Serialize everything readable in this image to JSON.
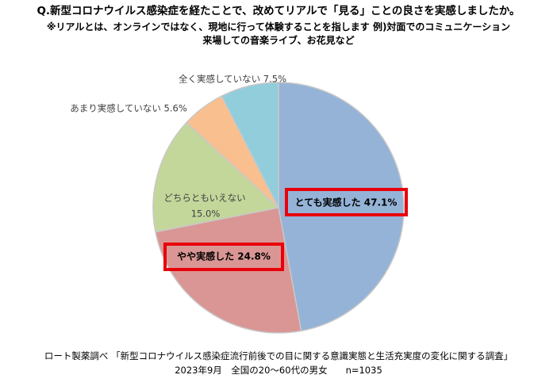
{
  "header": {
    "title": "Q.新型コロナウイルス感染症を経たことで、改めてリアルで「見る」ことの良さを実感しましたか。",
    "note_line1": "※リアルとは、オンラインではなく、現地に行って体験することを指します 例)対面でのコミュニケーション",
    "note_line2": "来場しての音楽ライブ、お花見など"
  },
  "chart_data": {
    "type": "pie",
    "categories": [
      "とても実感した",
      "やや実感した",
      "どちらともいえない",
      "あまり実感していない",
      "全く実感していない"
    ],
    "values": [
      47.1,
      24.8,
      15.0,
      5.6,
      7.5
    ],
    "unit": "%",
    "colors": [
      "#95b3d7",
      "#da9694",
      "#c4d79b",
      "#fabf8f",
      "#92cddc"
    ],
    "highlighted": [
      "とても実感した",
      "やや実感した"
    ],
    "highlight_color": "#e8000b",
    "labels": [
      {
        "category": "とても実感した",
        "text": "とても実感した 47.1%"
      },
      {
        "category": "やや実感した",
        "text": "やや実感した 24.8%"
      },
      {
        "category": "どちらともいえない",
        "text": "どちらともいえない",
        "value_text": "15.0%"
      },
      {
        "category": "あまり実感していない",
        "text": "あまり実感していない 5.6%"
      },
      {
        "category": "全く実感していない",
        "text": "全く実感していない 7.5%"
      }
    ]
  },
  "footer": {
    "source": "ロート製薬調べ 「新型コロナウイルス感染症流行前後での目に関する意識実態と生活充実度の変化に関する調査」",
    "survey_info": "2023年9月　全国の20～60代の男女　　n=1035"
  }
}
